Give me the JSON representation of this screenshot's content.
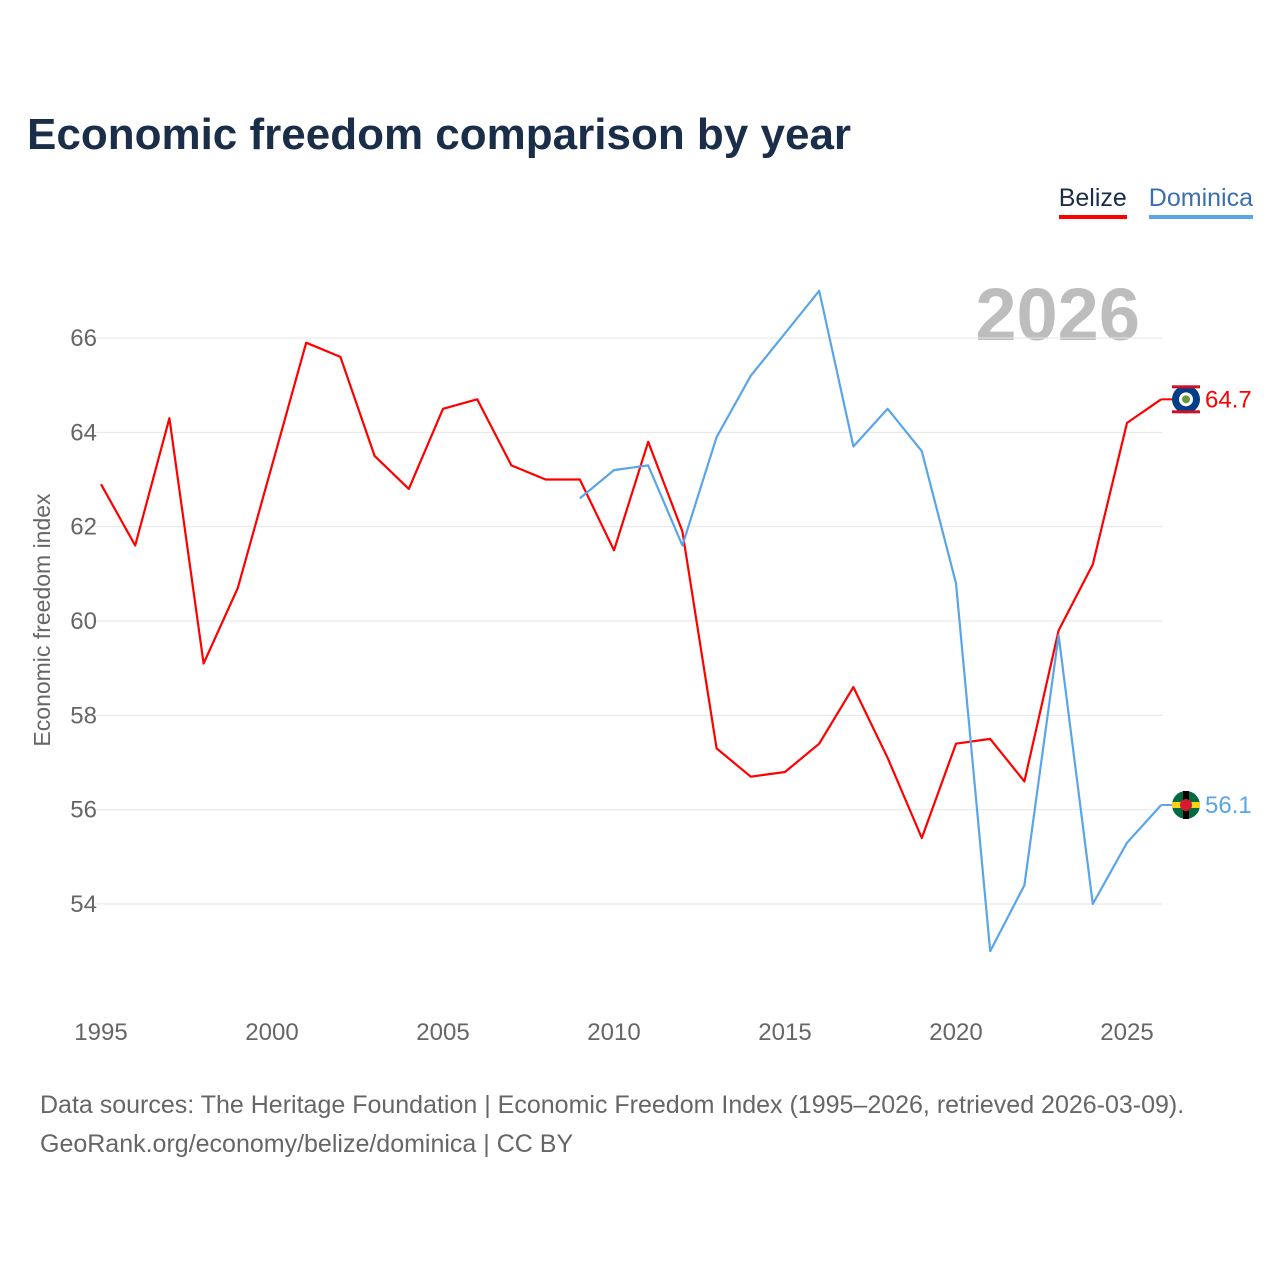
{
  "title": "Economic freedom comparison by year",
  "legend": [
    "Belize",
    "Dominica"
  ],
  "footer": {
    "line1": "Data sources: The Heritage Foundation | Economic Freedom Index (1995–2026, retrieved 2026-03-09).",
    "line2": "GeoRank.org/economy/belize/dominica | CC BY"
  },
  "chart_data": {
    "type": "line",
    "title": "Economic freedom comparison by year",
    "ylabel": "Economic freedom index",
    "xlabel": "",
    "year_watermark": "2026",
    "xlim": [
      1995,
      2026
    ],
    "ylim": [
      52.3,
      67.3
    ],
    "xticks": [
      1995,
      2000,
      2005,
      2010,
      2015,
      2020,
      2025
    ],
    "yticks": [
      54,
      56,
      58,
      60,
      62,
      64,
      66
    ],
    "grid": true,
    "legend_position": "top-right",
    "series": [
      {
        "name": "Belize",
        "color": "#ff0000",
        "end_label": "64.7",
        "x": [
          1995,
          1996,
          1997,
          1998,
          1999,
          2000,
          2001,
          2002,
          2003,
          2004,
          2005,
          2006,
          2007,
          2008,
          2009,
          2010,
          2011,
          2012,
          2013,
          2014,
          2015,
          2016,
          2017,
          2018,
          2019,
          2020,
          2021,
          2022,
          2023,
          2024,
          2025,
          2026
        ],
        "values": [
          62.9,
          61.6,
          64.3,
          59.1,
          60.7,
          63.3,
          65.9,
          65.6,
          63.5,
          62.8,
          64.5,
          64.7,
          63.3,
          63.0,
          63.0,
          61.5,
          63.8,
          61.9,
          57.3,
          56.7,
          56.8,
          57.4,
          58.6,
          57.1,
          55.4,
          57.4,
          57.5,
          56.6,
          59.8,
          61.2,
          64.2,
          64.7
        ]
      },
      {
        "name": "Dominica",
        "color": "#5aa5ea",
        "end_label": "56.1",
        "x": [
          2009,
          2010,
          2011,
          2012,
          2013,
          2014,
          2015,
          2016,
          2017,
          2018,
          2019,
          2020,
          2021,
          2022,
          2023,
          2024,
          2025,
          2026
        ],
        "values": [
          62.6,
          63.2,
          63.3,
          61.6,
          63.9,
          65.2,
          66.1,
          67.0,
          63.7,
          64.5,
          63.6,
          60.8,
          53.0,
          54.4,
          59.7,
          54.0,
          55.3,
          56.1
        ]
      }
    ]
  }
}
